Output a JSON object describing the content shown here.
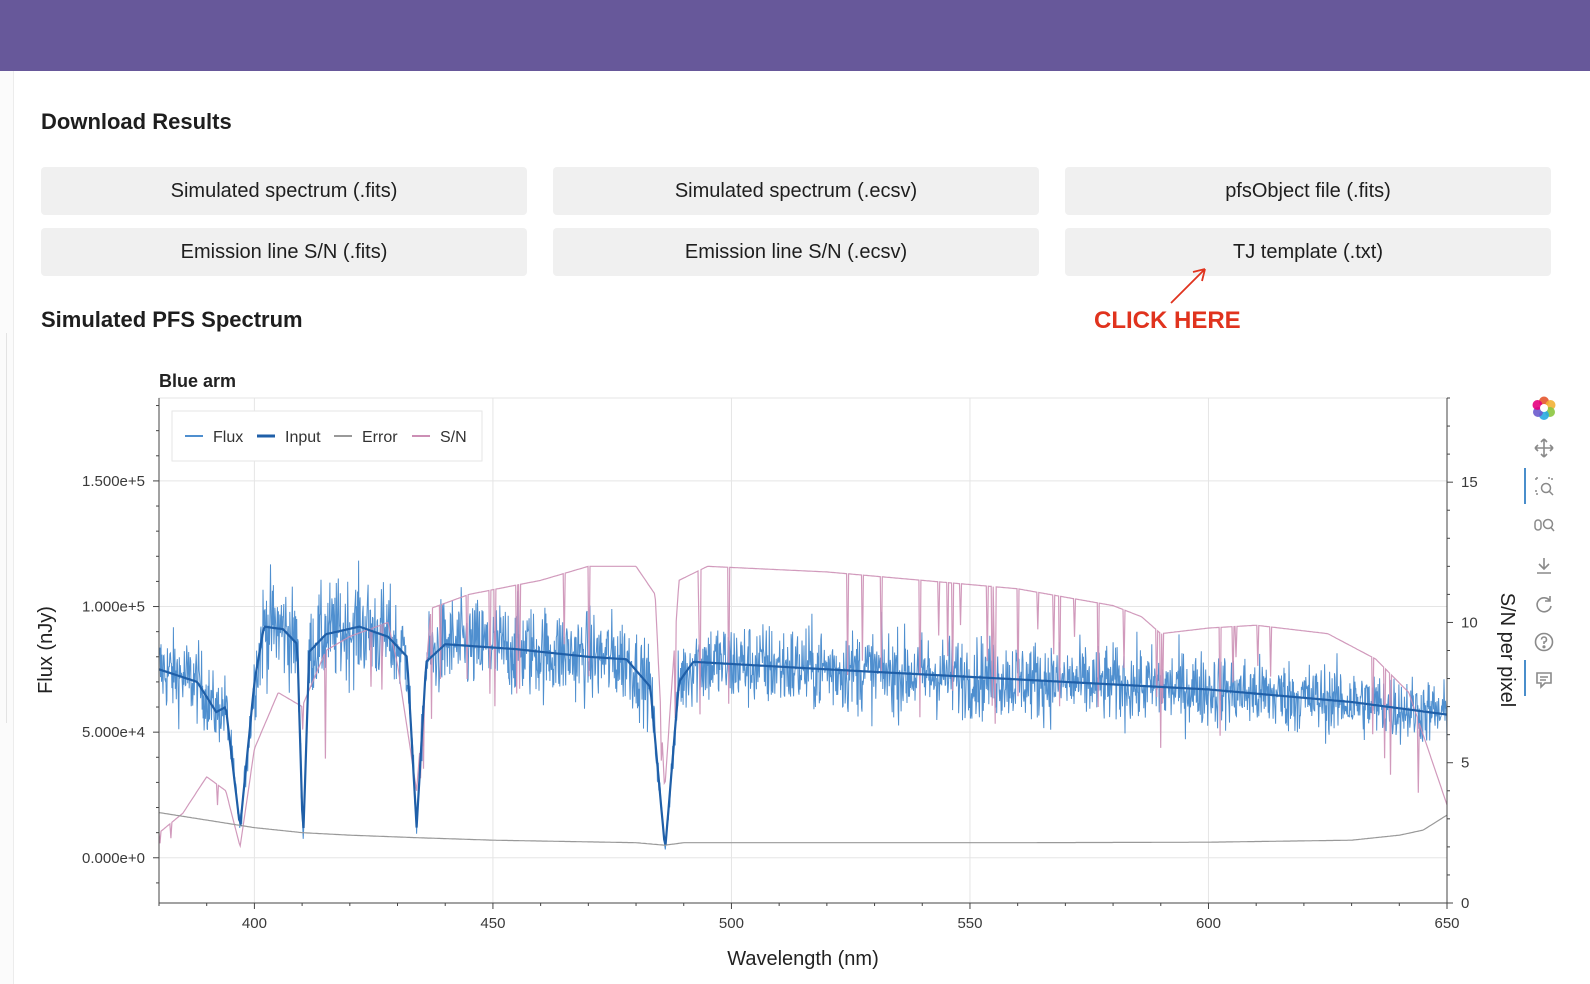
{
  "download": {
    "title": "Download Results",
    "buttons": [
      "Simulated spectrum (.fits)",
      "Simulated spectrum (.ecsv)",
      "pfsObject file (.fits)",
      "Emission line S/N (.fits)",
      "Emission line S/N (.ecsv)",
      "TJ template (.txt)"
    ]
  },
  "annotation": {
    "text": "CLICK HERE",
    "color": "#e0331e"
  },
  "spectrum": {
    "title": "Simulated PFS Spectrum"
  },
  "chart_data": {
    "type": "line",
    "title": "Blue arm",
    "xlabel": "Wavelength (nm)",
    "ylabel": "Flux (nJy)",
    "y2label": "S/N per pixel",
    "xlim": [
      380,
      650
    ],
    "ylim": [
      -18000,
      183000
    ],
    "y2lim": [
      0,
      18
    ],
    "xticks": [
      400,
      450,
      500,
      550,
      600,
      650
    ],
    "yticks": [
      0,
      50000,
      100000,
      150000
    ],
    "ytick_labels": [
      "0.000e+0",
      "5.000e+4",
      "1.000e+5",
      "1.500e+5"
    ],
    "y2ticks": [
      0,
      5,
      10,
      15
    ],
    "legend_position": "top-left",
    "grid": true,
    "series": [
      {
        "name": "Flux",
        "color": "#4f8fcf",
        "axis": "left",
        "noise": 0.16,
        "points": [
          [
            380,
            75000
          ],
          [
            388,
            70000
          ],
          [
            392,
            58000
          ],
          [
            394,
            60000
          ],
          [
            397,
            12000
          ],
          [
            400,
            70000
          ],
          [
            402,
            92000
          ],
          [
            406,
            91000
          ],
          [
            409,
            85000
          ],
          [
            410.2,
            6000
          ],
          [
            411.5,
            82000
          ],
          [
            415,
            89000
          ],
          [
            422,
            92000
          ],
          [
            428,
            88000
          ],
          [
            432,
            80000
          ],
          [
            434,
            12000
          ],
          [
            436,
            78000
          ],
          [
            440,
            85000
          ],
          [
            455,
            83000
          ],
          [
            470,
            80000
          ],
          [
            478,
            79000
          ],
          [
            483,
            68000
          ],
          [
            486.1,
            3000
          ],
          [
            489,
            70000
          ],
          [
            492,
            78000
          ],
          [
            520,
            75000
          ],
          [
            560,
            71000
          ],
          [
            600,
            67000
          ],
          [
            630,
            62000
          ],
          [
            650,
            57000
          ]
        ]
      },
      {
        "name": "Input",
        "color": "#1f5fa8",
        "axis": "left",
        "noise": 0.0,
        "points": [
          [
            380,
            75000
          ],
          [
            388,
            70000
          ],
          [
            392,
            58000
          ],
          [
            394,
            60000
          ],
          [
            397,
            12000
          ],
          [
            400,
            70000
          ],
          [
            402,
            92000
          ],
          [
            406,
            91000
          ],
          [
            409,
            85000
          ],
          [
            410.2,
            6000
          ],
          [
            411.5,
            82000
          ],
          [
            415,
            89000
          ],
          [
            422,
            92000
          ],
          [
            428,
            88000
          ],
          [
            432,
            80000
          ],
          [
            434,
            12000
          ],
          [
            436,
            78000
          ],
          [
            440,
            85000
          ],
          [
            455,
            83000
          ],
          [
            470,
            80000
          ],
          [
            478,
            79000
          ],
          [
            483,
            68000
          ],
          [
            486.1,
            3000
          ],
          [
            489,
            70000
          ],
          [
            492,
            78000
          ],
          [
            520,
            75000
          ],
          [
            560,
            71000
          ],
          [
            600,
            67000
          ],
          [
            630,
            62000
          ],
          [
            650,
            57000
          ]
        ]
      },
      {
        "name": "Error",
        "color": "#999999",
        "axis": "left",
        "noise": 0.0,
        "points": [
          [
            380,
            18000
          ],
          [
            390,
            15000
          ],
          [
            400,
            12000
          ],
          [
            410,
            10000
          ],
          [
            420,
            9000
          ],
          [
            434,
            8000
          ],
          [
            450,
            7000
          ],
          [
            480,
            6000
          ],
          [
            486,
            5000
          ],
          [
            490,
            6000
          ],
          [
            520,
            6000
          ],
          [
            560,
            6000
          ],
          [
            600,
            6200
          ],
          [
            630,
            7000
          ],
          [
            640,
            9000
          ],
          [
            645,
            11000
          ],
          [
            650,
            17000
          ]
        ]
      },
      {
        "name": "S/N",
        "color": "#cc8fb5",
        "axis": "right",
        "noise": 0.0,
        "points": [
          [
            380,
            2.5
          ],
          [
            385,
            3.2
          ],
          [
            390,
            4.5
          ],
          [
            394,
            4.0
          ],
          [
            397,
            2.0
          ],
          [
            400,
            5.5
          ],
          [
            405,
            7.5
          ],
          [
            410,
            7.0
          ],
          [
            415,
            9.0
          ],
          [
            420,
            9.5
          ],
          [
            428,
            10.0
          ],
          [
            430,
            8.5
          ],
          [
            434,
            4.0
          ],
          [
            437,
            10.5
          ],
          [
            445,
            11.0
          ],
          [
            460,
            11.5
          ],
          [
            470,
            12.0
          ],
          [
            480,
            12.0
          ],
          [
            484,
            11.0
          ],
          [
            486,
            4.0
          ],
          [
            489,
            11.5
          ],
          [
            495,
            12.0
          ],
          [
            520,
            11.8
          ],
          [
            560,
            11.2
          ],
          [
            580,
            10.6
          ],
          [
            586,
            10.2
          ],
          [
            590,
            9.6
          ],
          [
            600,
            9.8
          ],
          [
            610,
            9.9
          ],
          [
            625,
            9.6
          ],
          [
            635,
            8.7
          ],
          [
            642,
            7.5
          ],
          [
            648,
            4.5
          ],
          [
            650,
            3.5
          ]
        ]
      }
    ]
  },
  "toolbar": {
    "tools": [
      "bokeh-logo-icon",
      "pan-icon",
      "box-zoom-icon",
      "wheel-zoom-icon",
      "save-icon",
      "reset-icon",
      "help-icon",
      "hover-icon"
    ]
  }
}
